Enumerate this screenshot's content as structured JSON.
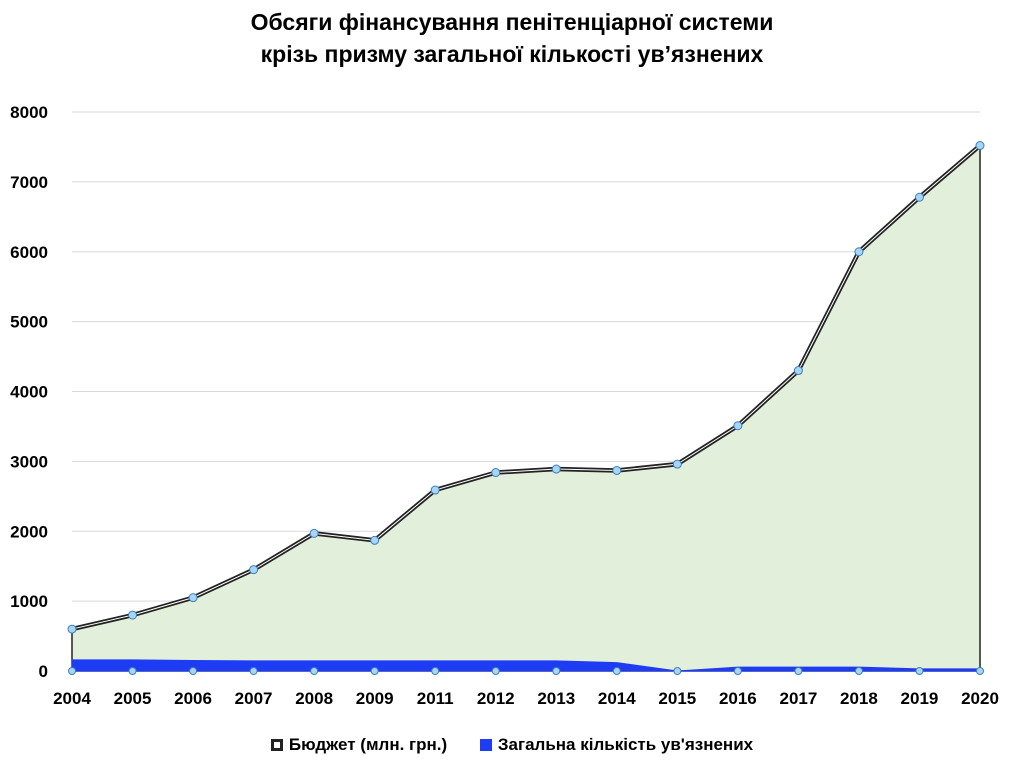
{
  "chart_data": {
    "type": "area",
    "title_lines": [
      "Обсяги фінансування пенітенціарної системи",
      "крізь призму загальної кількості ув’язнених"
    ],
    "categories": [
      "2004",
      "2005",
      "2006",
      "2007",
      "2008",
      "2009",
      "2011",
      "2012",
      "2013",
      "2014",
      "2015",
      "2016",
      "2017",
      "2018",
      "2019",
      "2020"
    ],
    "ylim": [
      0,
      8000
    ],
    "yticks": [
      0,
      1000,
      2000,
      3000,
      4000,
      5000,
      6000,
      7000,
      8000
    ],
    "grid": true,
    "legend_position": "bottom",
    "series": [
      {
        "name": "Бюджет (млн. грн.)",
        "values": [
          600,
          800,
          1050,
          1450,
          1970,
          1870,
          2590,
          2840,
          2890,
          2870,
          2960,
          3510,
          4300,
          6000,
          6780,
          7520
        ],
        "fill": "#e2efda",
        "line": "#222222",
        "marker": "#a9d5f5"
      },
      {
        "name": "Загальна кількість ув'язнених",
        "values": [
          160,
          160,
          150,
          145,
          145,
          145,
          145,
          145,
          145,
          120,
          0,
          55,
          55,
          55,
          30,
          30
        ],
        "fill": "#1f3cf5",
        "marker": "#a9d5f5"
      }
    ]
  }
}
